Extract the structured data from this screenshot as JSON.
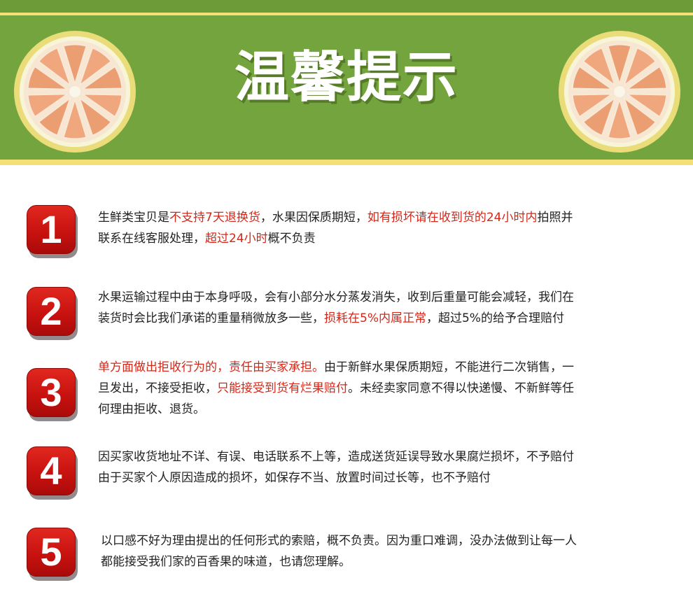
{
  "header": {
    "title": "温馨提示",
    "left_icon": "grapefruit-slice-icon",
    "right_icon": "grapefruit-slice-icon"
  },
  "colors": {
    "banner_green": "#73a43e",
    "banner_yellow": "#f3e178",
    "badge_red": "#c8120f",
    "highlight_red": "#d32718",
    "body_text": "#222222"
  },
  "items": [
    {
      "number": "1",
      "lines": [
        [
          {
            "text": "生鲜类宝贝是",
            "red": false
          },
          {
            "text": "不支持7天退换货",
            "red": true
          },
          {
            "text": "，水果因保质期短，",
            "red": false
          },
          {
            "text": "如有损坏请在收到货的24小时内",
            "red": true
          },
          {
            "text": "拍照并",
            "red": false
          }
        ],
        [
          {
            "text": "联系在线客服处理，",
            "red": false
          },
          {
            "text": "超过24小时",
            "red": true
          },
          {
            "text": "概不负责",
            "red": false
          }
        ]
      ]
    },
    {
      "number": "2",
      "lines": [
        [
          {
            "text": "水果运输过程中由于本身呼吸，会有小部分水分蒸发消失，收到后重量可能会减轻，我们在",
            "red": false
          }
        ],
        [
          {
            "text": "装货时会比我们承诺的重量稍微放多一些，",
            "red": false
          },
          {
            "text": "损耗在5%内属正常",
            "red": true
          },
          {
            "text": "，超过5%的给予合理赔付",
            "red": false
          }
        ]
      ]
    },
    {
      "number": "3",
      "lines": [
        [
          {
            "text": "单方面做出拒收行为的，责任由买家承担。",
            "red": true
          },
          {
            "text": "由于新鲜水果保质期短，不能进行二次销售，一",
            "red": false
          }
        ],
        [
          {
            "text": "旦发出，不接受拒收，",
            "red": false
          },
          {
            "text": "只能接受到货有烂果赔付",
            "red": true
          },
          {
            "text": "。未经卖家同意不得以快递慢、不新鲜等任",
            "red": false
          }
        ],
        [
          {
            "text": "何理由拒收、退货。",
            "red": false
          }
        ]
      ]
    },
    {
      "number": "4",
      "lines": [
        [
          {
            "text": "因买家收货地址不详、有误、电话联系不上等，造成送货延误导致水果腐烂损坏，不予赔付",
            "red": false
          }
        ],
        [
          {
            "text": "由于买家个人原因造成的损坏，如保存不当、放置时间过长等，也不予赔付",
            "red": false
          }
        ]
      ]
    },
    {
      "number": "5",
      "lines": [
        [
          {
            "text": "以口感不好为理由提出的任何形式的索赔，概不负责。因为重口难调，没办法做到让每一人",
            "red": false
          }
        ],
        [
          {
            "text": "都能接受我们家的百香果的味道，也请您理解。",
            "red": false
          }
        ]
      ]
    }
  ]
}
